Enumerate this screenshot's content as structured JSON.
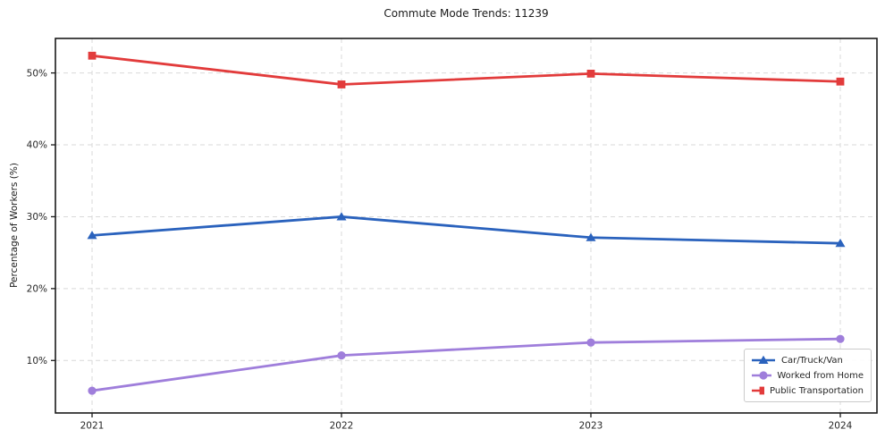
{
  "chart_data": {
    "type": "line",
    "title": "Commute Mode Trends: 11239",
    "xlabel": "",
    "ylabel": "Percentage of Workers (%)",
    "categories": [
      "2021",
      "2022",
      "2023",
      "2024"
    ],
    "series": [
      {
        "name": "Car/Truck/Van",
        "marker": "triangle",
        "color": "#2a62bd",
        "values": [
          27.4,
          30.0,
          27.1,
          26.3
        ]
      },
      {
        "name": "Worked from Home",
        "marker": "circle",
        "color": "#9f7edb",
        "values": [
          5.8,
          10.7,
          12.5,
          13.0
        ]
      },
      {
        "name": "Public Transportation",
        "marker": "square",
        "color": "#e23b3b",
        "values": [
          52.4,
          48.4,
          49.9,
          48.8
        ]
      }
    ],
    "yticks": [
      10,
      20,
      30,
      40,
      50
    ],
    "ytick_labels": [
      "10%",
      "20%",
      "30%",
      "40%",
      "50%"
    ],
    "ylim": [
      2.7,
      54.8
    ],
    "grid": true,
    "grid_style": "dashed",
    "legend_position": "lower right",
    "colors": {
      "grid": "#d9d9d9",
      "spine": "#1a1a1a",
      "tick_label": "#262626",
      "background": "#ffffff"
    }
  }
}
